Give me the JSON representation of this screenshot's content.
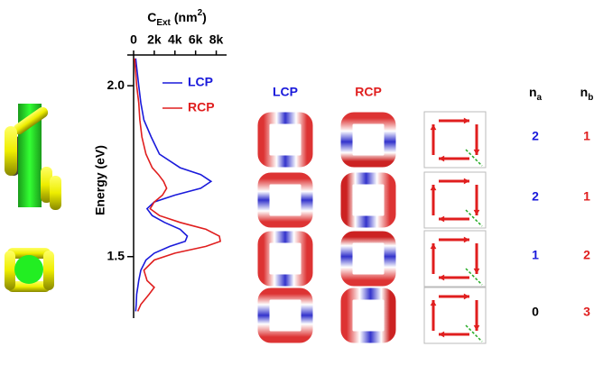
{
  "chart_data": {
    "type": "line",
    "orientation": "vertical",
    "x_label": {
      "main": "C",
      "sub": "Ext",
      "unit": "(nm",
      "sup": "2",
      "close": ")"
    },
    "y_label": "Energy (eV)",
    "xlim": [
      0,
      9000
    ],
    "xticks": [
      0,
      {
        "value": 2000,
        "label": "2k"
      },
      {
        "value": 4000,
        "label": "4k"
      },
      {
        "value": 6000,
        "label": "6k"
      },
      {
        "value": 8000,
        "label": "8k"
      }
    ],
    "ylim": [
      1.32,
      2.09
    ],
    "yticks": [
      {
        "value": 2,
        "label": "2.0"
      },
      {
        "value": 1.5,
        "label": "1.5"
      }
    ],
    "energy": [
      2.08,
      2.0,
      1.95,
      1.9,
      1.85,
      1.8,
      1.76,
      1.74,
      1.72,
      1.7,
      1.68,
      1.66,
      1.64,
      1.62,
      1.6,
      1.58,
      1.56,
      1.545,
      1.53,
      1.51,
      1.49,
      1.46,
      1.43,
      1.41,
      1.39,
      1.36,
      1.34
    ],
    "series": [
      {
        "name": "LCP",
        "color": "#1a1adb",
        "values": [
          200,
          500,
          700,
          1000,
          1700,
          2500,
          4500,
          6500,
          7500,
          6500,
          4000,
          2000,
          1300,
          1800,
          3000,
          4500,
          5200,
          5000,
          3500,
          2000,
          1200,
          700,
          500,
          400,
          300,
          250,
          200
        ]
      },
      {
        "name": "RCP",
        "color": "#e01e1e",
        "values": [
          100,
          300,
          500,
          600,
          800,
          1200,
          1800,
          2400,
          2900,
          3200,
          2800,
          2000,
          1600,
          2500,
          4500,
          7000,
          8300,
          8400,
          7000,
          4000,
          2000,
          1000,
          1300,
          2000,
          1500,
          700,
          400
        ]
      }
    ]
  },
  "panels": {
    "headers": [
      {
        "text": "LCP",
        "color": "#1a1adb"
      },
      {
        "text": "RCP",
        "color": "#e01e1e"
      }
    ]
  },
  "table": {
    "headers": [
      {
        "main": "n",
        "sub": "a"
      },
      {
        "main": "n",
        "sub": "b"
      }
    ],
    "rows": [
      [
        2,
        1
      ],
      [
        2,
        1
      ],
      [
        1,
        2
      ],
      [
        0,
        3
      ]
    ],
    "colors": [
      [
        "#1a1adb",
        "#e01e1e"
      ],
      [
        "#1a1adb",
        "#e01e1e"
      ],
      [
        "#1a1adb",
        "#e01e1e"
      ],
      [
        "#000000",
        "#e01e1e"
      ]
    ]
  }
}
